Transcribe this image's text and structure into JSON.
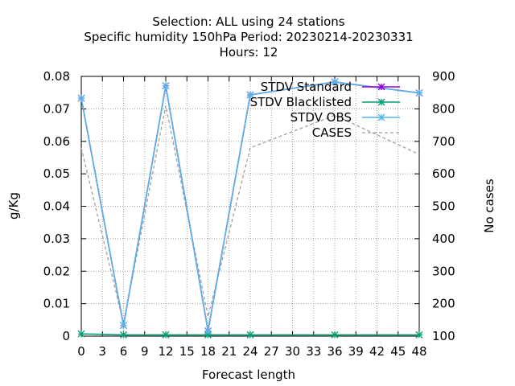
{
  "chart_data": {
    "type": "line",
    "title": [
      "Selection: ALL using    24 stations",
      "Specific humidity 150hPa   Period: 20230214-20230331",
      "Hours:  12"
    ],
    "xlabel": "Forecast length",
    "ylabel": "g/Kg",
    "y2label": "No cases",
    "x_ticks": [
      0,
      3,
      6,
      9,
      12,
      15,
      18,
      21,
      24,
      27,
      30,
      33,
      36,
      39,
      42,
      45,
      48
    ],
    "xlim": [
      0,
      48
    ],
    "ylim": [
      0,
      0.08
    ],
    "y_ticks": [
      0,
      0.01,
      0.02,
      0.03,
      0.04,
      0.05,
      0.06,
      0.07,
      0.08
    ],
    "y2lim": [
      100,
      900
    ],
    "y2_ticks": [
      100,
      200,
      300,
      400,
      500,
      600,
      700,
      800,
      900
    ],
    "grid": true,
    "legend_position": "top-right",
    "x": [
      0,
      6,
      12,
      18,
      24,
      36,
      48
    ],
    "series": [
      {
        "name": "STDV Standard",
        "axis": "y1",
        "color": "#9400d3",
        "style": "solid",
        "marker": "star",
        "values": [
          0.0733,
          0.0033,
          0.0771,
          0.0016,
          0.0743,
          0.0783,
          0.0749
        ]
      },
      {
        "name": "STDV Blacklisted",
        "axis": "y1",
        "color": "#009e73",
        "style": "solid",
        "marker": "star",
        "values": [
          0.0007,
          0.0004,
          0.0004,
          0.0004,
          0.0004,
          0.0004,
          0.0004
        ]
      },
      {
        "name": "STDV OBS",
        "axis": "y1",
        "color": "#56b4e9",
        "style": "solid",
        "marker": "star",
        "values": [
          0.0733,
          0.0033,
          0.0771,
          0.0016,
          0.0743,
          0.0783,
          0.0749
        ]
      },
      {
        "name": "CASES",
        "axis": "y2",
        "color": "#a0a0a0",
        "style": "dashed",
        "marker": "none",
        "values": [
          680,
          140,
          810,
          160,
          680,
          780,
          660
        ]
      }
    ]
  }
}
